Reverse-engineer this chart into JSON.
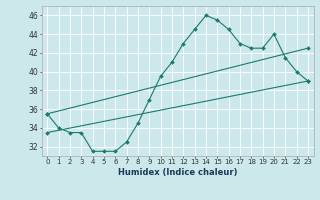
{
  "title": "",
  "xlabel": "Humidex (Indice chaleur)",
  "ylabel": "",
  "bg_color": "#cce8ea",
  "grid_color": "#ffffff",
  "line_color": "#1a7a6e",
  "xlim": [
    -0.5,
    23.5
  ],
  "ylim": [
    31.0,
    47.0
  ],
  "yticks": [
    32,
    34,
    36,
    38,
    40,
    42,
    44,
    46
  ],
  "xticks": [
    0,
    1,
    2,
    3,
    4,
    5,
    6,
    7,
    8,
    9,
    10,
    11,
    12,
    13,
    14,
    15,
    16,
    17,
    18,
    19,
    20,
    21,
    22,
    23
  ],
  "main_x": [
    0,
    1,
    2,
    3,
    4,
    5,
    6,
    7,
    8,
    9,
    10,
    11,
    12,
    13,
    14,
    15,
    16,
    17,
    18,
    19,
    20,
    21,
    22,
    23
  ],
  "main_y": [
    35.5,
    34.0,
    33.5,
    33.5,
    31.5,
    31.5,
    31.5,
    32.5,
    34.5,
    37.0,
    39.5,
    41.0,
    43.0,
    44.5,
    46.0,
    45.5,
    44.5,
    43.0,
    42.5,
    42.5,
    44.0,
    41.5,
    40.0,
    39.0
  ],
  "upper_line_x": [
    0,
    23
  ],
  "upper_line_y": [
    35.5,
    42.5
  ],
  "lower_line_x": [
    0,
    23
  ],
  "lower_line_y": [
    33.5,
    39.0
  ],
  "xlabel_fontsize": 6,
  "tick_fontsize": 5,
  "ytick_fontsize": 5.5
}
